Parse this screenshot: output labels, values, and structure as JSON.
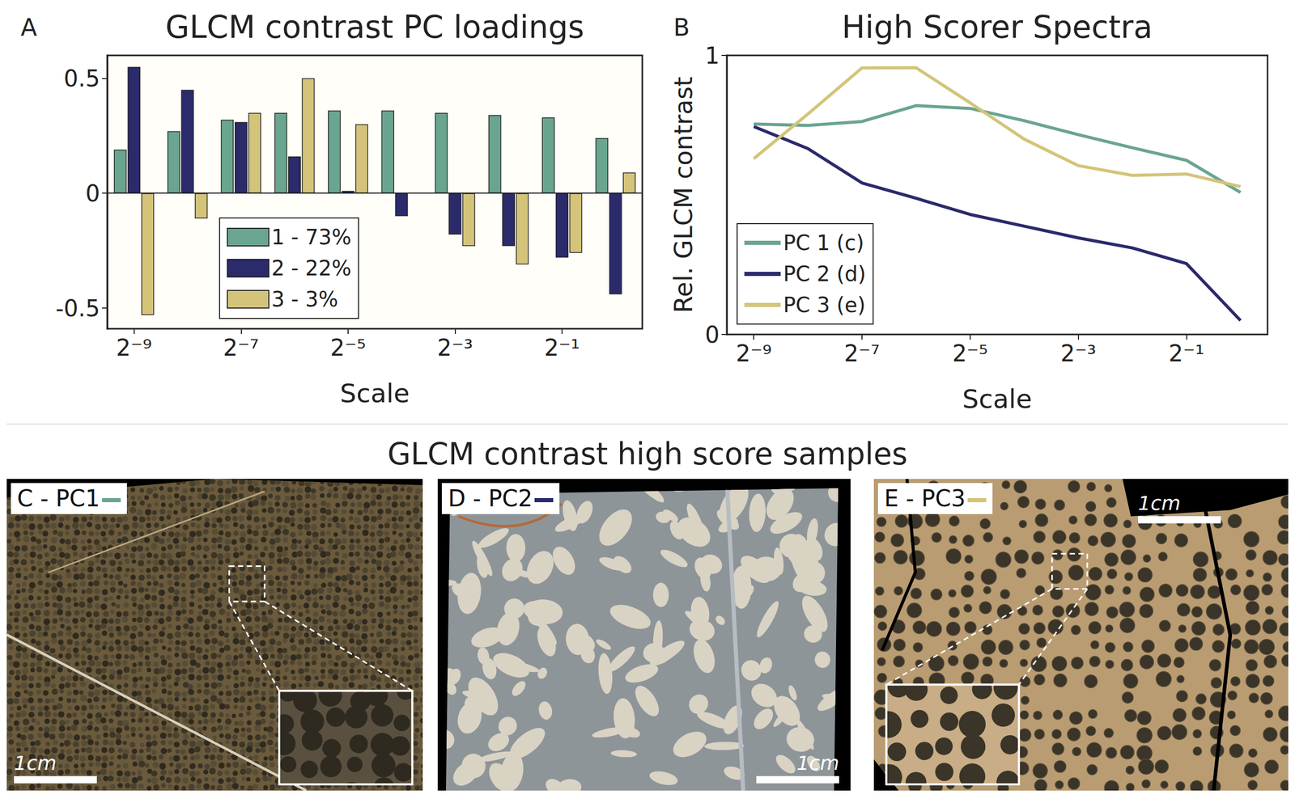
{
  "chart_data": [
    {
      "panel": "A",
      "type": "bar",
      "title": "GLCM contrast PC loadings",
      "x_label": "Scale",
      "categories": [
        "2⁻⁹",
        null,
        "2⁻⁷",
        null,
        "2⁻⁵",
        null,
        "2⁻³",
        null,
        "2⁻¹",
        null
      ],
      "series": [
        {
          "name": "1 - 73%",
          "color": "#6aa58f",
          "values": [
            0.19,
            0.27,
            0.32,
            0.35,
            0.36,
            0.36,
            0.35,
            0.34,
            0.33,
            0.24
          ]
        },
        {
          "name": "2 - 22%",
          "color": "#2b2a6b",
          "values": [
            0.55,
            0.45,
            0.31,
            0.16,
            0.01,
            -0.1,
            -0.18,
            -0.23,
            -0.28,
            -0.44
          ]
        },
        {
          "name": "3 - 3%",
          "color": "#d4c47a",
          "values": [
            -0.53,
            -0.11,
            0.35,
            0.5,
            0.3,
            0.0,
            -0.23,
            -0.31,
            -0.26,
            0.09
          ]
        }
      ],
      "ylim": [
        -0.59,
        0.6
      ],
      "yticks": [
        -0.5,
        0,
        0.5
      ],
      "legend": "lower center",
      "grid": false
    },
    {
      "panel": "B",
      "type": "line",
      "title": "High Scorer Spectra",
      "x_label": "Scale",
      "y_label": "Rel. GLCM contrast",
      "categories": [
        "2⁻⁹",
        null,
        "2⁻⁷",
        null,
        "2⁻⁵",
        null,
        "2⁻³",
        null,
        "2⁻¹",
        null
      ],
      "series": [
        {
          "name": "PC 1 (c)",
          "color": "#6aa58f",
          "values": [
            0.754,
            0.749,
            0.763,
            0.82,
            0.81,
            0.766,
            0.716,
            0.669,
            0.624,
            0.509
          ]
        },
        {
          "name": "PC 2 (d)",
          "color": "#2b2a6b",
          "values": [
            0.745,
            0.666,
            0.543,
            0.488,
            0.43,
            0.388,
            0.346,
            0.31,
            0.254,
            0.05
          ]
        },
        {
          "name": "PC 3 (e)",
          "color": "#d4c47a",
          "values": [
            0.63,
            0.79,
            0.955,
            0.956,
            0.83,
            0.7,
            0.605,
            0.57,
            0.575,
            0.53
          ]
        }
      ],
      "ylim": [
        0,
        1
      ],
      "yticks": [
        0,
        1
      ],
      "legend": "lower left",
      "grid": false
    }
  ],
  "section_title": "GLCM contrast high score samples",
  "samples": [
    {
      "label": "C - PC1",
      "color": "#6aa58f",
      "scale_bar": "1cm"
    },
    {
      "label": "D - PC2",
      "color": "#2b2a6b",
      "scale_bar": "1cm"
    },
    {
      "label": "E - PC3",
      "color": "#d4c47a",
      "scale_bar": "1cm"
    }
  ]
}
